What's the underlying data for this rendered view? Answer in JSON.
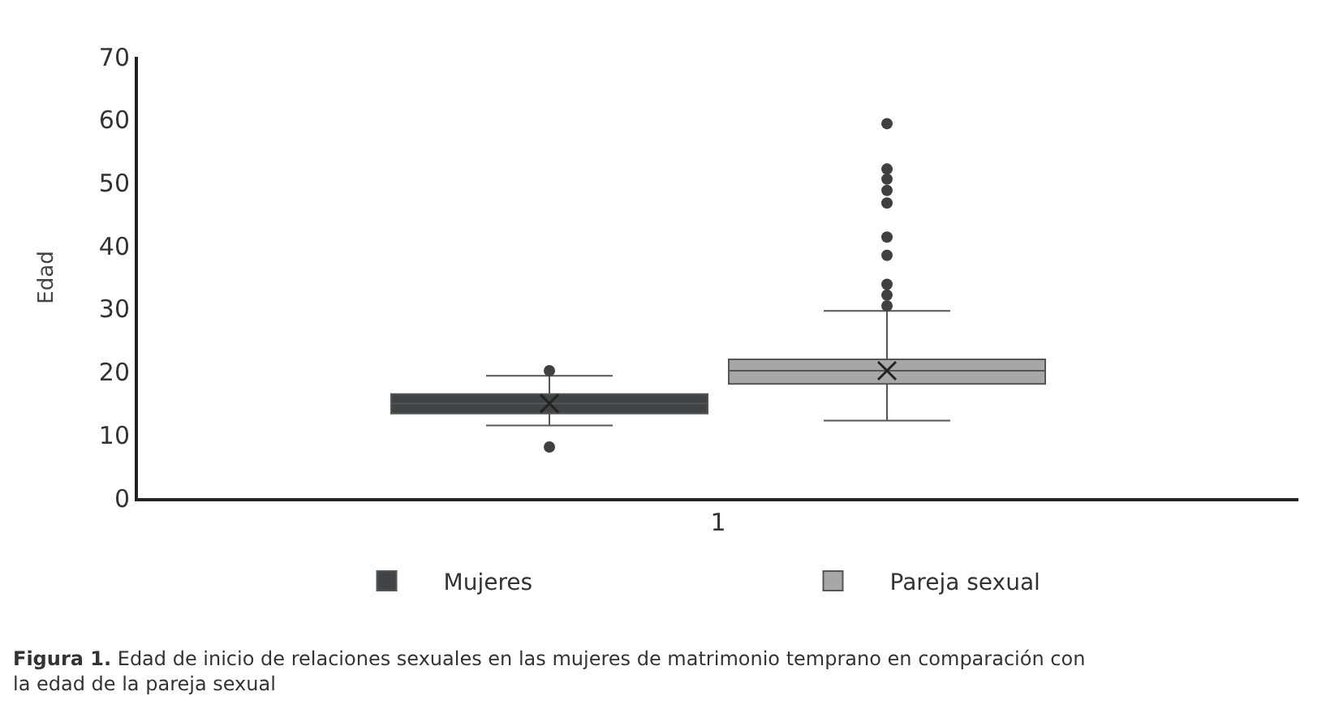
{
  "chart_data": {
    "type": "box",
    "ylabel": "Edad",
    "categories": [
      "1"
    ],
    "ylim": [
      0,
      70
    ],
    "yticks": [
      0,
      10,
      20,
      30,
      40,
      50,
      60,
      70
    ],
    "grid": false,
    "legend": "bottom",
    "annotations": [
      "**Figura 1.** Edad de inicio de relaciones sexuales en las mujeres de matrimonio temprano en comparación con la edad de la pareja sexual"
    ],
    "series": [
      {
        "name": "Mujeres",
        "color": "#404447",
        "boxes": [
          {
            "low": 11.5,
            "q1": 13.4,
            "median": 15,
            "q3": 16.5,
            "high": 19.4,
            "mean": 15,
            "outliers": [
              20.2,
              8.1
            ]
          }
        ]
      },
      {
        "name": "Pareja sexual",
        "color": "#a6a7a9",
        "boxes": [
          {
            "low": 12.3,
            "q1": 18.1,
            "median": 20.2,
            "q3": 22,
            "high": 29.7,
            "mean": 20.2,
            "outliers": [
              59.4,
              52.2,
              50.6,
              48.8,
              46.8,
              41.4,
              38.5,
              33.9,
              32.2,
              30.5
            ]
          }
        ]
      }
    ]
  }
}
